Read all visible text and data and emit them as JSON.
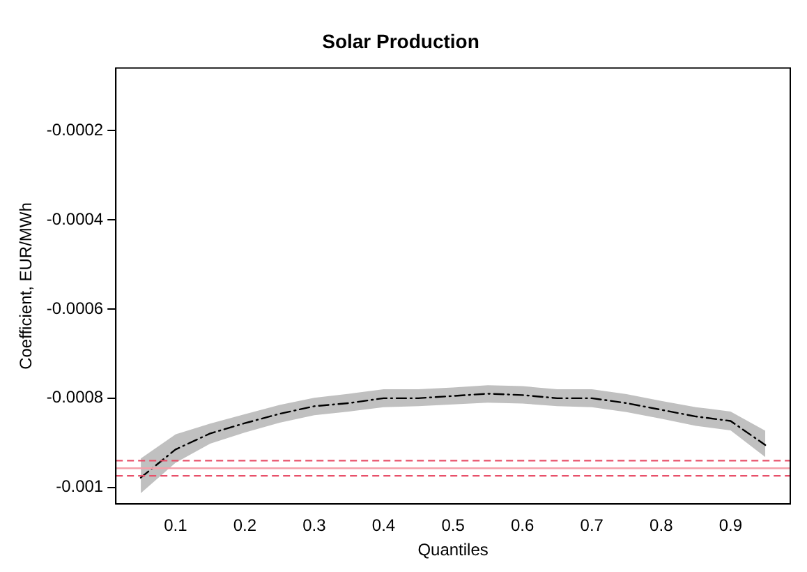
{
  "chart_data": {
    "type": "line",
    "title": "Solar Production",
    "xlabel": "Quantiles",
    "ylabel": "Coefficient, EUR/MWh",
    "x": [
      0.05,
      0.1,
      0.15,
      0.2,
      0.25,
      0.3,
      0.35,
      0.4,
      0.45,
      0.5,
      0.55,
      0.6,
      0.65,
      0.7,
      0.75,
      0.8,
      0.85,
      0.9,
      0.95
    ],
    "series": [
      {
        "color": "#000000",
        "line_style": "dashed",
        "marker": "none",
        "values": [
          -0.000978,
          -0.000915,
          -0.000879,
          -0.000856,
          -0.000835,
          -0.000818,
          -0.000811,
          -0.0008,
          -0.0008,
          -0.000795,
          -0.00079,
          -0.000793,
          -0.0008,
          -0.0008,
          -0.000811,
          -0.000826,
          -0.000841,
          -0.000851,
          -0.000905
        ],
        "lower": [
          -0.001013,
          -0.000945,
          -0.000902,
          -0.000877,
          -0.000855,
          -0.000838,
          -0.00083,
          -0.00082,
          -0.000818,
          -0.000814,
          -0.00081,
          -0.000812,
          -0.000818,
          -0.00082,
          -0.000831,
          -0.000846,
          -0.000862,
          -0.000872,
          -0.000932
        ],
        "upper": [
          -0.000935,
          -0.000881,
          -0.000857,
          -0.000836,
          -0.000815,
          -0.000799,
          -0.00079,
          -0.00078,
          -0.00078,
          -0.000776,
          -0.000771,
          -0.000773,
          -0.00078,
          -0.00078,
          -0.000791,
          -0.000806,
          -0.00082,
          -0.00083,
          -0.000873
        ]
      }
    ],
    "ref_lines": [
      {
        "axis": "y",
        "value": -0.000957,
        "color": "#f4a0aa",
        "line_style": "solid"
      },
      {
        "axis": "y",
        "value": -0.00094,
        "color": "#e8506a",
        "line_style": "dashed"
      },
      {
        "axis": "y",
        "value": -0.000974,
        "color": "#e8506a",
        "line_style": "dashed"
      }
    ],
    "xlim": [
      0.014,
      0.986
    ],
    "ylim": [
      -0.001037,
      -6e-05
    ],
    "xticks": [
      0.1,
      0.2,
      0.3,
      0.4,
      0.5,
      0.6,
      0.7,
      0.8,
      0.9
    ],
    "yticks": [
      -0.001,
      -0.0008,
      -0.0006,
      -0.0004,
      -0.0002
    ],
    "grid": false,
    "legend": false
  }
}
